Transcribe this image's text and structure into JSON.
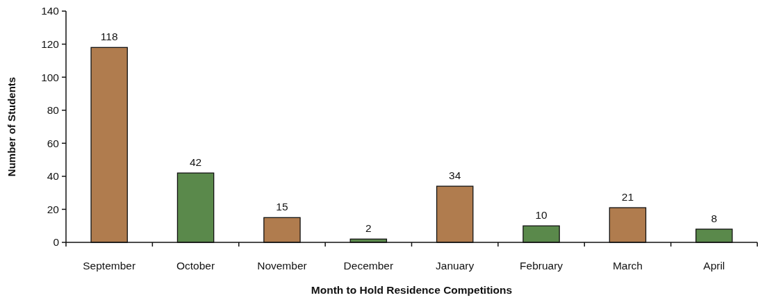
{
  "chart_data": {
    "type": "bar",
    "xlabel": "Month to Hold Residence Competitions",
    "ylabel": "Number of Students",
    "categories": [
      "September",
      "October",
      "November",
      "December",
      "January",
      "February",
      "March",
      "April"
    ],
    "values": [
      118,
      42,
      15,
      2,
      34,
      10,
      21,
      8
    ],
    "colors": [
      "#b07c4e",
      "#5a894b",
      "#b07c4e",
      "#5a894b",
      "#b07c4e",
      "#5a894b",
      "#b07c4e",
      "#5a894b"
    ],
    "ylim": [
      0,
      140
    ],
    "yticks": [
      0,
      20,
      40,
      60,
      80,
      100,
      120,
      140
    ],
    "data_labels": true,
    "grid": false
  }
}
